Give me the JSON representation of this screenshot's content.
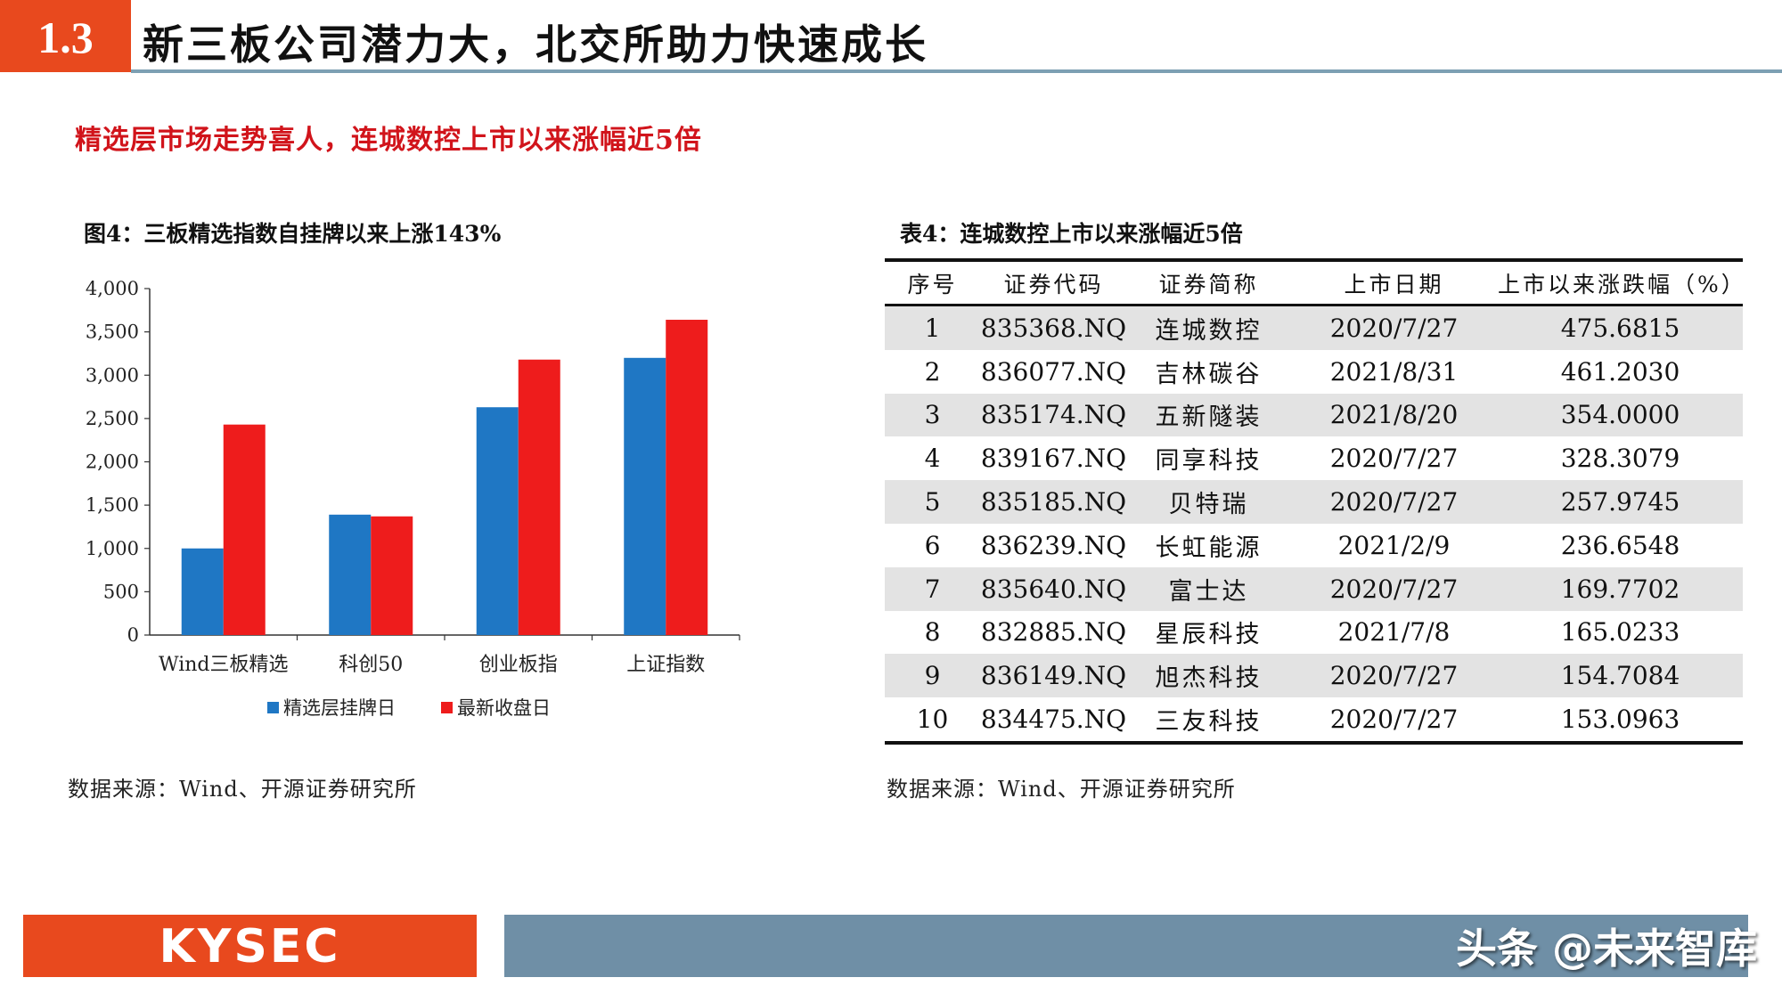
{
  "header": {
    "section_number": "1.3",
    "title": "新三板公司潜力大，北交所助力快速成长"
  },
  "subtitle": "精选层市场走势喜人，连城数控上市以来涨幅近5倍",
  "figure": {
    "title": "图4：三板精选指数自挂牌以来上涨143%",
    "source": "数据来源：Wind、开源证券研究所"
  },
  "chart_data": {
    "type": "bar",
    "categories": [
      "Wind三板精选",
      "科创50",
      "创业板指",
      "上证指数"
    ],
    "series": [
      {
        "name": "精选层挂牌日",
        "color": "#1f77c4",
        "values": [
          1000,
          1390,
          2630,
          3200
        ]
      },
      {
        "name": "最新收盘日",
        "color": "#ee1c1c",
        "values": [
          2430,
          1370,
          3180,
          3640
        ]
      }
    ],
    "ylim": [
      0,
      4000
    ],
    "yticks": [
      0,
      500,
      1000,
      1500,
      2000,
      2500,
      3000,
      3500,
      4000
    ],
    "ytick_labels": [
      "0",
      "500",
      "1,000",
      "1,500",
      "2,000",
      "2,500",
      "3,000",
      "3,500",
      "4,000"
    ],
    "legend_position": "bottom",
    "grid": false
  },
  "table": {
    "title": "表4：连城数控上市以来涨幅近5倍",
    "headers": [
      "序号",
      "证券代码",
      "证券简称",
      "上市日期",
      "上市以来涨跌幅（%）"
    ],
    "rows": [
      [
        "1",
        "835368.NQ",
        "连城数控",
        "2020/7/27",
        "475.6815"
      ],
      [
        "2",
        "836077.NQ",
        "吉林碳谷",
        "2021/8/31",
        "461.2030"
      ],
      [
        "3",
        "835174.NQ",
        "五新隧装",
        "2021/8/20",
        "354.0000"
      ],
      [
        "4",
        "839167.NQ",
        "同享科技",
        "2020/7/27",
        "328.3079"
      ],
      [
        "5",
        "835185.NQ",
        "贝特瑞",
        "2020/7/27",
        "257.9745"
      ],
      [
        "6",
        "836239.NQ",
        "长虹能源",
        "2021/2/9",
        "236.6548"
      ],
      [
        "7",
        "835640.NQ",
        "富士达",
        "2020/7/27",
        "169.7702"
      ],
      [
        "8",
        "832885.NQ",
        "星辰科技",
        "2021/7/8",
        "165.0233"
      ],
      [
        "9",
        "836149.NQ",
        "旭杰科技",
        "2020/7/27",
        "154.7084"
      ],
      [
        "10",
        "834475.NQ",
        "三友科技",
        "2020/7/27",
        "153.0963"
      ]
    ],
    "source": "数据来源：Wind、开源证券研究所"
  },
  "footer": {
    "logo": "KYSEC",
    "watermark": "头条 @未来智库"
  }
}
